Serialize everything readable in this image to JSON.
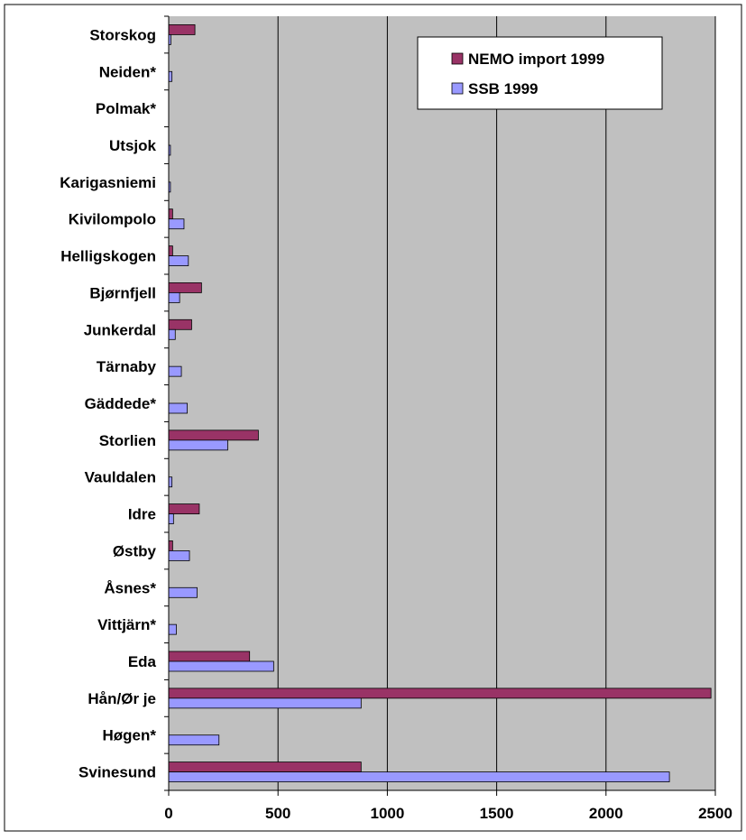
{
  "chart_data": {
    "type": "bar",
    "orientation": "horizontal",
    "categories": [
      "Storskog",
      "Neiden*",
      "Polmak*",
      "Utsjok",
      "Karigasniemi",
      "Kivilompolo",
      "Helligskogen",
      "Bjørnfjell",
      "Junkerdal",
      "Tärnaby",
      "Gäddede*",
      "Storlien",
      "Vauldalen",
      "Idre",
      "Østby",
      "Åsnes*",
      "Vittjärn*",
      "Eda",
      "Hån/Ør je",
      "Høgen*",
      "Svinesund"
    ],
    "series": [
      {
        "name": "NEMO import 1999",
        "color": "#993366",
        "values": [
          120,
          0,
          0,
          0,
          0,
          18,
          18,
          150,
          105,
          0,
          0,
          410,
          0,
          140,
          18,
          0,
          0,
          370,
          2480,
          0,
          880
        ]
      },
      {
        "name": "SSB 1999",
        "color": "#9999ff",
        "values": [
          10,
          15,
          0,
          8,
          8,
          70,
          90,
          50,
          30,
          58,
          85,
          270,
          15,
          22,
          95,
          130,
          35,
          480,
          880,
          230,
          2290
        ]
      }
    ],
    "xlim": [
      0,
      2500
    ],
    "x_ticks": [
      "0",
      "500",
      "1000",
      "1500",
      "2000",
      "2500"
    ],
    "grid": true,
    "legend_position": "top-right",
    "title": "",
    "xlabel": "",
    "ylabel": "",
    "plot_background": "#c0c0c0"
  }
}
